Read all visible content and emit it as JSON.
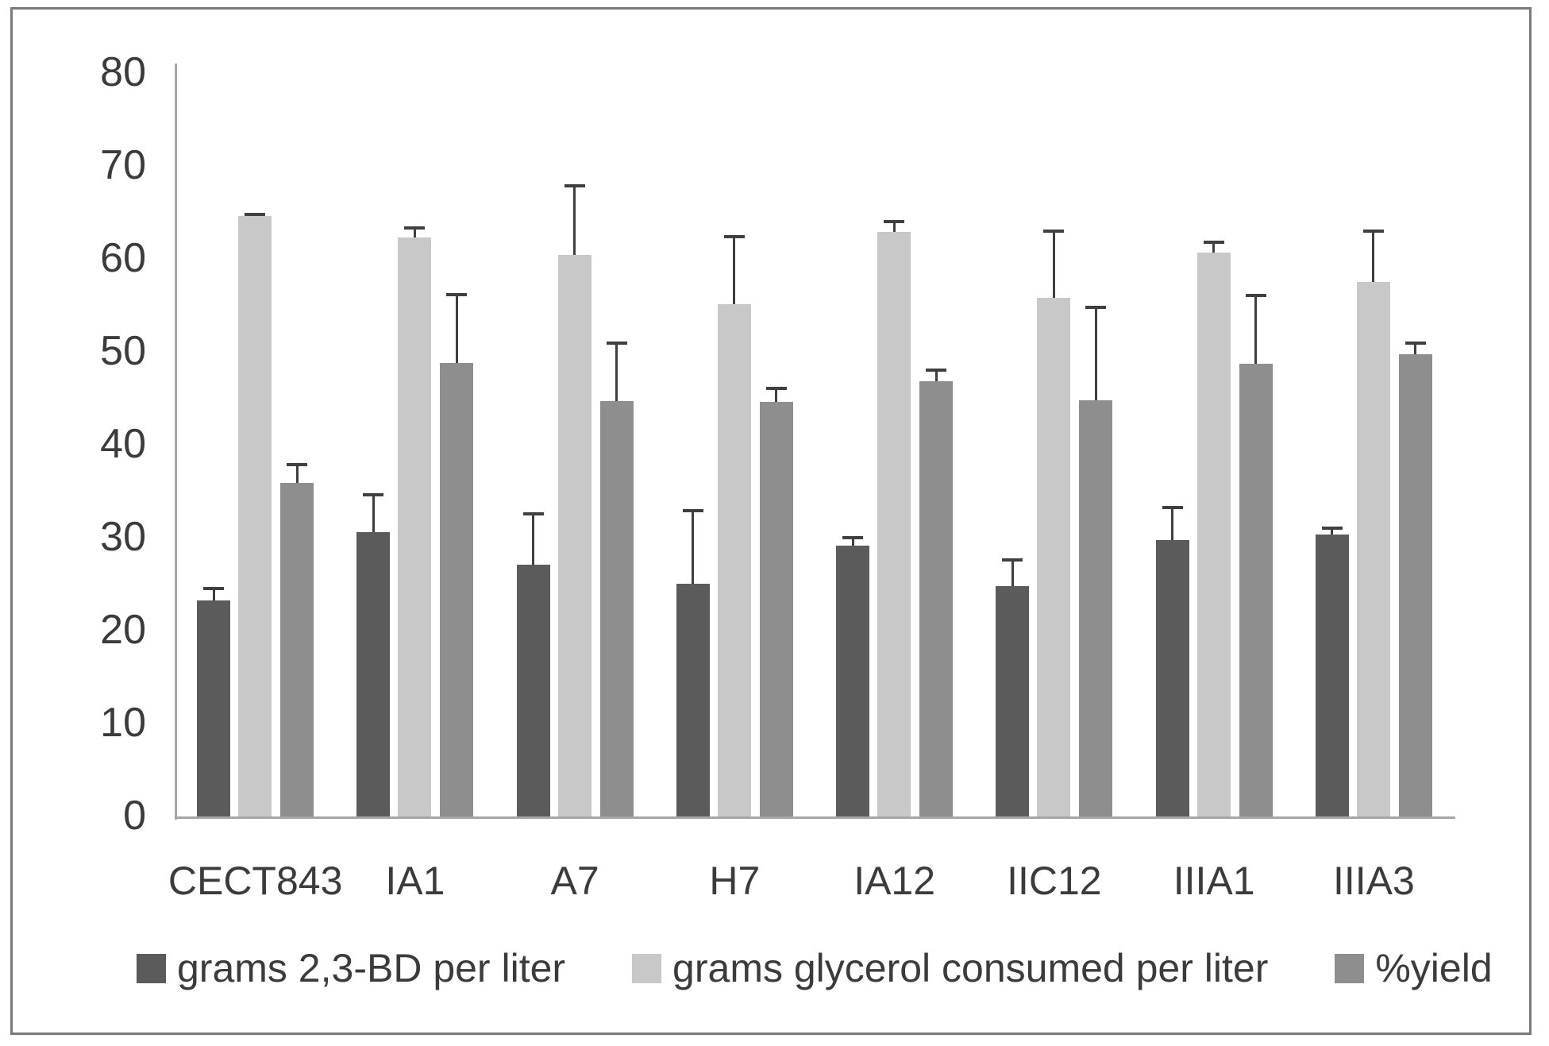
{
  "figure": {
    "background": "#ffffff",
    "border_color": "#7a7a7a"
  },
  "chart_data": {
    "type": "bar",
    "title": "",
    "xlabel": "",
    "ylabel": "",
    "categories": [
      "CECT843",
      "IA1",
      "A7",
      "H7",
      "IA12",
      "IIC12",
      "IIIA1",
      "IIIA3"
    ],
    "series": [
      {
        "name": "grams 2,3-BD per liter",
        "color": "#5b5b5b",
        "values": [
          23.3,
          30.7,
          27.2,
          25.1,
          29.2,
          24.9,
          29.8,
          30.4
        ],
        "errors": [
          1.4,
          4.1,
          5.5,
          8.0,
          1.0,
          2.9,
          3.6,
          0.8
        ]
      },
      {
        "name": "grams glycerol consumed per liter",
        "color": "#c8c8c8",
        "values": [
          64.7,
          62.4,
          60.5,
          55.2,
          63.0,
          55.9,
          60.8,
          57.6
        ],
        "errors": [
          0.3,
          1.1,
          7.5,
          7.4,
          1.2,
          7.3,
          1.2,
          5.6
        ]
      },
      {
        "name": "%yield",
        "color": "#8e8e8e",
        "values": [
          36.0,
          48.9,
          44.8,
          44.7,
          46.9,
          44.9,
          48.8,
          49.8
        ],
        "errors": [
          2.0,
          7.4,
          6.3,
          1.5,
          1.3,
          10.1,
          7.4,
          1.3
        ]
      }
    ],
    "ylim": [
      0,
      80
    ],
    "yticks": [
      0,
      10,
      20,
      30,
      40,
      50,
      60,
      70,
      80
    ],
    "grid": false,
    "error_bars": true,
    "legend_position": "bottom",
    "axis_color": "#a6a6a6",
    "error_bar_color": "#3f3f3f",
    "text_color": "#3b3b3b"
  }
}
